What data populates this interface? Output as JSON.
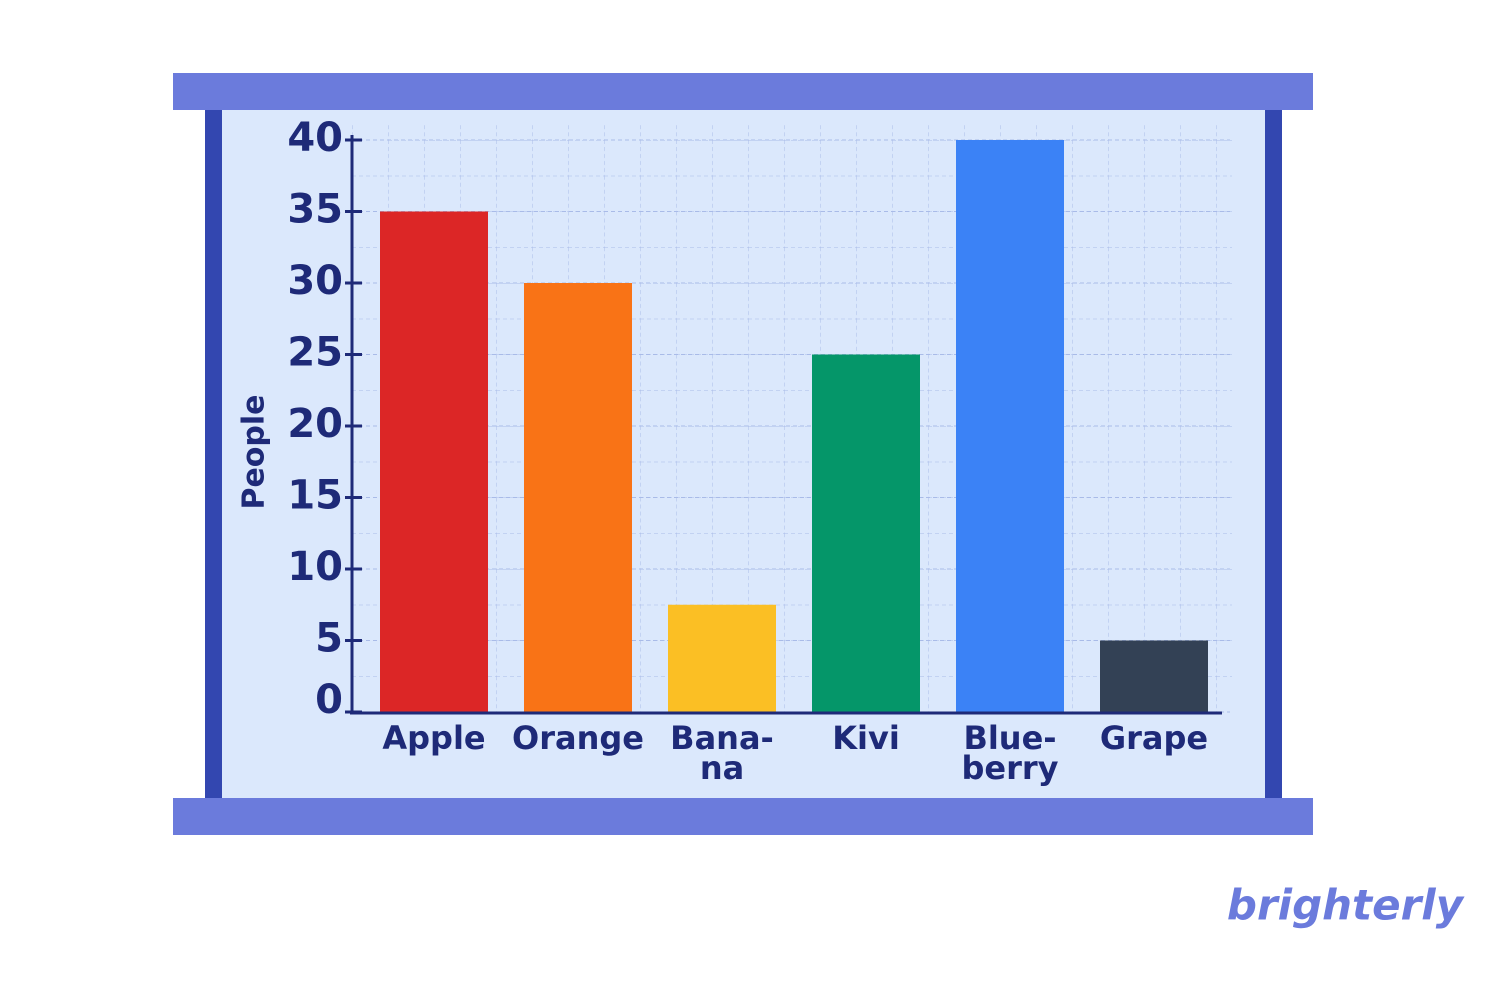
{
  "chart_data": {
    "type": "bar",
    "y_label": "People",
    "categories": [
      "Apple",
      "Orange",
      "Bana-\nna",
      "Kivi",
      "Blue-\nberry",
      "Grape"
    ],
    "values": [
      35,
      30,
      7.5,
      25,
      40,
      5
    ],
    "colors": [
      "#dc2626",
      "#f97316",
      "#fbbf24",
      "#059669",
      "#3b82f6",
      "#334155"
    ],
    "ylim": [
      0,
      40
    ],
    "yticks": [
      0,
      5,
      10,
      15,
      20,
      25,
      30,
      35,
      40
    ],
    "grid": true
  },
  "brand": "brighterly"
}
